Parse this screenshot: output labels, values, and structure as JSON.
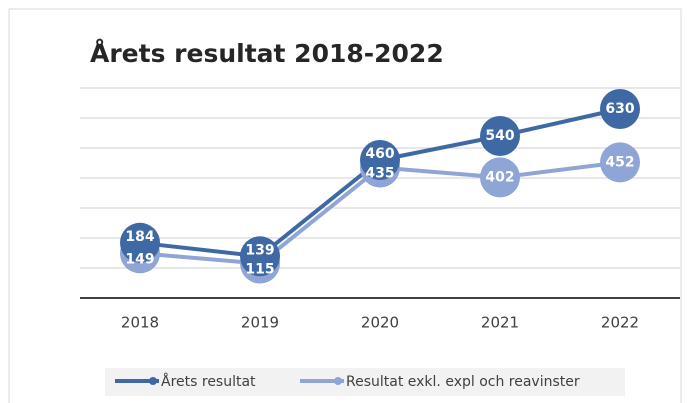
{
  "chart_data": {
    "type": "line",
    "title": "Årets resultat 2018-2022",
    "categories": [
      "2018",
      "2019",
      "2020",
      "2021",
      "2022"
    ],
    "series": [
      {
        "name": "Årets resultat",
        "color": "#3f69a5",
        "values": [
          184,
          139,
          460,
          540,
          630
        ]
      },
      {
        "name": "Resultat exkl. expl och reavinster",
        "color": "#8fa5d6",
        "values": [
          149,
          115,
          435,
          402,
          452
        ]
      }
    ],
    "ylim": [
      0,
      700
    ],
    "yticks": [
      0,
      100,
      200,
      300,
      400,
      500,
      600,
      700
    ],
    "grid": true,
    "legend": "bottom"
  }
}
